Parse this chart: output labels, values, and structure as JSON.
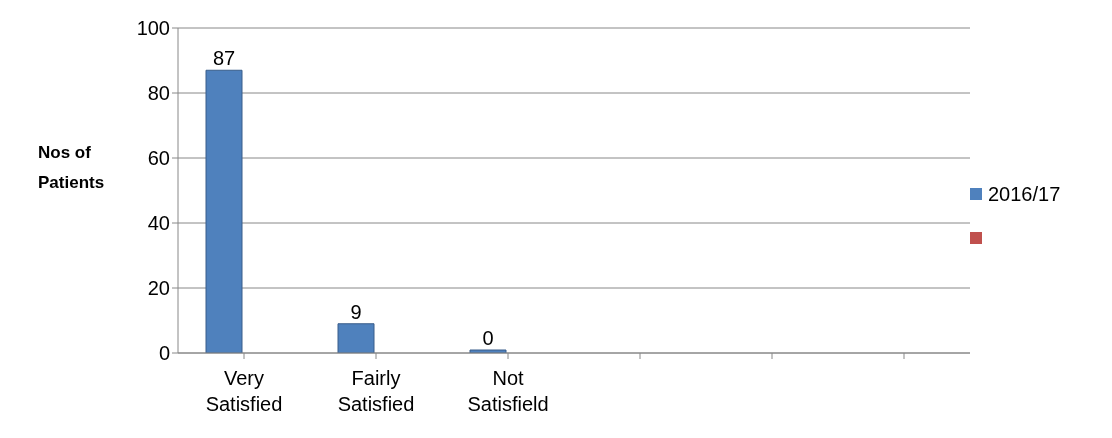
{
  "chart_data": {
    "type": "bar",
    "ylabel": "Nos of Patients",
    "categories": [
      "Very Satisfied",
      "Fairly Satisfied",
      "Not Satisfield",
      null,
      null,
      null
    ],
    "series": [
      {
        "name": "2016/17",
        "color": "#4f81bd",
        "values": [
          87,
          9,
          0,
          null,
          null,
          null
        ]
      },
      {
        "color": "#c0504d",
        "values": [
          null,
          null,
          null,
          null,
          null,
          null
        ]
      }
    ],
    "ylim": [
      0,
      100
    ],
    "yticks": [
      0,
      20,
      40,
      60,
      80,
      100
    ],
    "grid": "y",
    "legend": "right",
    "data_labels": true
  }
}
